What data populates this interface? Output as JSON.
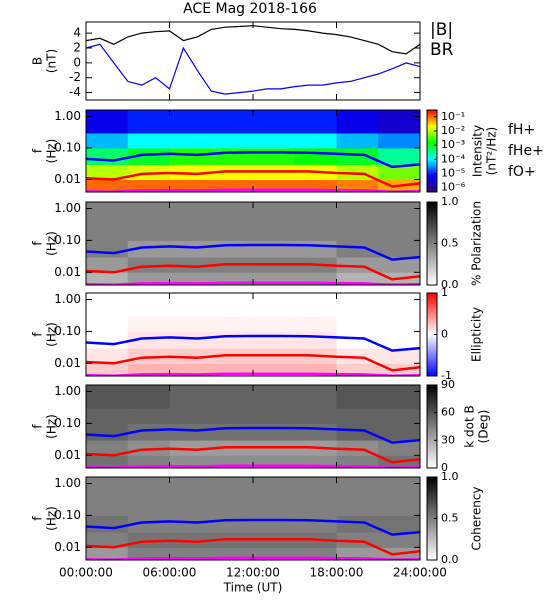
{
  "chart_data": [
    {
      "type": "line",
      "title": "ACE Mag 2018-166",
      "ylabel": [
        "B",
        "(nT)"
      ],
      "x": [
        0,
        1,
        2,
        3,
        4,
        5,
        6,
        7,
        8,
        9,
        10,
        11,
        12,
        13,
        14,
        15,
        16,
        17,
        18,
        19,
        20,
        21,
        22,
        23,
        24
      ],
      "xlim": [
        0,
        24
      ],
      "ylim": [
        -5,
        5.5
      ],
      "yticks": [
        -4,
        -2,
        0,
        2,
        4
      ],
      "series": [
        {
          "name": "|B|",
          "color": "#000000",
          "values": [
            3.0,
            3.3,
            2.5,
            3.5,
            4.0,
            4.2,
            4.3,
            3.0,
            3.5,
            4.5,
            4.8,
            4.9,
            5.0,
            4.8,
            4.6,
            4.5,
            4.3,
            4.0,
            3.8,
            3.5,
            3.0,
            2.5,
            1.5,
            1.2,
            2.5
          ]
        },
        {
          "name": "BR",
          "color": "#0000ff",
          "values": [
            2.0,
            2.5,
            0.0,
            -2.5,
            -3.0,
            -2.0,
            -3.5,
            2.0,
            -1.0,
            -3.8,
            -4.2,
            -4.0,
            -3.8,
            -3.5,
            -3.5,
            -3.2,
            -3.0,
            -3.0,
            -2.7,
            -2.5,
            -2.0,
            -1.5,
            -0.8,
            0.0,
            -0.5
          ]
        }
      ]
    },
    {
      "type": "heatmap",
      "ylabel": [
        "f",
        "(Hz)"
      ],
      "ylog": true,
      "xlim": [
        0,
        24
      ],
      "ylim": [
        0.004,
        1.6
      ],
      "yticks": [
        {
          "value": 1,
          "label": "1.00"
        },
        {
          "value": 0.1,
          "label": "0.10"
        },
        0.01
      ],
      "x_edges": [
        0,
        3,
        6,
        9,
        12,
        15,
        18,
        21,
        24
      ],
      "y_edges": [
        0.004,
        0.01,
        0.03,
        0.1,
        0.3,
        1.6
      ],
      "z": [
        [
          0.1,
          0.1,
          0.1,
          0.1,
          0.1,
          0.1,
          0.08,
          0.05
        ],
        [
          0.01,
          0.015,
          0.02,
          0.02,
          0.02,
          0.02,
          0.01,
          0.005
        ],
        [
          0.0005,
          0.001,
          0.002,
          0.002,
          0.002,
          0.0015,
          0.001,
          0.0003
        ],
        [
          5e-05,
          0.0001,
          0.0001,
          0.0001,
          0.0001,
          0.0001,
          5e-05,
          3e-05
        ],
        [
          5e-06,
          1e-05,
          1e-05,
          1e-05,
          1e-05,
          1e-05,
          5e-06,
          3e-06
        ]
      ],
      "colormap": [
        "#3a006a",
        "#0000ff",
        "#00ffff",
        "#00ff00",
        "#ffff00",
        "#ff0000"
      ],
      "colorscale": "log",
      "clim": [
        5e-07,
        0.3
      ],
      "cticks": [
        {
          "value": 0.1,
          "label": "10⁻¹"
        },
        {
          "value": 0.01,
          "label": "10⁻²"
        },
        {
          "value": 0.001,
          "label": "10⁻³"
        },
        {
          "value": 0.0001,
          "label": "10⁻⁴"
        },
        {
          "value": 1e-05,
          "label": "10⁻⁵"
        },
        {
          "value": 1e-06,
          "label": "10⁻⁶"
        }
      ],
      "clabel": [
        "Intensity",
        "(nT²/Hz)"
      ],
      "x": [
        0,
        2,
        4,
        6,
        8,
        10,
        12,
        14,
        16,
        18,
        20,
        22,
        24
      ],
      "series": [
        {
          "name": "fH+",
          "color": "#0000ff",
          "values": [
            0.045,
            0.04,
            0.06,
            0.065,
            0.06,
            0.07,
            0.072,
            0.072,
            0.07,
            0.065,
            0.06,
            0.025,
            0.03
          ]
        },
        {
          "name": "fHe+",
          "color": "#ff0000",
          "values": [
            0.011,
            0.01,
            0.015,
            0.016,
            0.015,
            0.018,
            0.018,
            0.018,
            0.018,
            0.016,
            0.015,
            0.006,
            0.0075
          ]
        },
        {
          "name": "fO+",
          "color": "#ff00ff",
          "values": [
            0.0042,
            0.0041,
            0.0045,
            0.0046,
            0.0045,
            0.0047,
            0.0047,
            0.0047,
            0.0047,
            0.0046,
            0.0045,
            0.0041,
            0.0042
          ]
        }
      ]
    },
    {
      "type": "heatmap",
      "ylabel": [
        "f",
        "(Hz)"
      ],
      "ylog": true,
      "xlim": [
        0,
        24
      ],
      "ylim": [
        0.004,
        1.6
      ],
      "yticks": [
        {
          "value": 1,
          "label": "1.00"
        },
        {
          "value": 0.1,
          "label": "0.10"
        },
        0.01
      ],
      "x_edges": [
        0,
        3,
        6,
        9,
        12,
        15,
        18,
        21,
        24
      ],
      "y_edges": [
        0.004,
        0.01,
        0.03,
        0.1,
        0.3,
        1.6
      ],
      "z": [
        [
          0.3,
          0.4,
          0.4,
          0.4,
          0.4,
          0.4,
          0.3,
          0.3
        ],
        [
          0.4,
          0.5,
          0.5,
          0.5,
          0.5,
          0.5,
          0.4,
          0.4
        ],
        [
          0.5,
          0.4,
          0.4,
          0.4,
          0.4,
          0.4,
          0.5,
          0.5
        ],
        [
          0.5,
          0.5,
          0.5,
          0.5,
          0.5,
          0.5,
          0.5,
          0.5
        ],
        [
          0.5,
          0.5,
          0.5,
          0.5,
          0.5,
          0.5,
          0.5,
          0.5
        ]
      ],
      "colormap": [
        "#ffffff",
        "#000000"
      ],
      "clim": [
        0,
        1
      ],
      "cticks": [
        {
          "value": 0,
          "label": "0.0"
        },
        0.5,
        {
          "value": 1,
          "label": "1.0"
        }
      ],
      "clabel": [
        "% Polarization"
      ],
      "x": [
        0,
        2,
        4,
        6,
        8,
        10,
        12,
        14,
        16,
        18,
        20,
        22,
        24
      ],
      "series": [
        {
          "color": "#0000ff",
          "values": [
            0.045,
            0.04,
            0.06,
            0.065,
            0.06,
            0.07,
            0.072,
            0.072,
            0.07,
            0.065,
            0.06,
            0.025,
            0.03
          ]
        },
        {
          "color": "#ff0000",
          "values": [
            0.011,
            0.01,
            0.015,
            0.016,
            0.015,
            0.018,
            0.018,
            0.018,
            0.018,
            0.016,
            0.015,
            0.006,
            0.0075
          ]
        },
        {
          "color": "#ff00ff",
          "values": [
            0.0042,
            0.0041,
            0.0045,
            0.0046,
            0.0045,
            0.0047,
            0.0047,
            0.0047,
            0.0047,
            0.0046,
            0.0045,
            0.0041,
            0.0042
          ]
        }
      ]
    },
    {
      "type": "heatmap",
      "ylabel": [
        "f",
        "(Hz)"
      ],
      "ylog": true,
      "xlim": [
        0,
        24
      ],
      "ylim": [
        0.004,
        1.6
      ],
      "yticks": [
        {
          "value": 1,
          "label": "1.00"
        },
        {
          "value": 0.1,
          "label": "0.10"
        },
        0.01
      ],
      "x_edges": [
        0,
        3,
        6,
        9,
        12,
        15,
        18,
        21,
        24
      ],
      "y_edges": [
        0.004,
        0.01,
        0.03,
        0.1,
        0.3,
        1.6
      ],
      "z": [
        [
          0.2,
          0.3,
          0.3,
          0.3,
          0.3,
          0.3,
          0.2,
          0.2
        ],
        [
          0.1,
          0.2,
          0.2,
          0.2,
          0.2,
          0.2,
          0.1,
          0.1
        ],
        [
          0,
          0.1,
          0.1,
          0.1,
          0.1,
          0.1,
          0,
          0
        ],
        [
          0,
          0.05,
          0.05,
          0.05,
          0.05,
          0.05,
          0,
          0
        ],
        [
          0,
          0,
          0,
          0,
          0,
          0,
          0,
          0
        ]
      ],
      "colormap": [
        "#0000ff",
        "#ffffff",
        "#ff0000"
      ],
      "clim": [
        -1,
        1
      ],
      "cticks": [
        -1,
        0,
        1
      ],
      "clabel": [
        "Ellipticity"
      ],
      "x": [
        0,
        2,
        4,
        6,
        8,
        10,
        12,
        14,
        16,
        18,
        20,
        22,
        24
      ],
      "series": [
        {
          "color": "#0000ff",
          "values": [
            0.045,
            0.04,
            0.06,
            0.065,
            0.06,
            0.07,
            0.072,
            0.072,
            0.07,
            0.065,
            0.06,
            0.025,
            0.03
          ]
        },
        {
          "color": "#ff0000",
          "values": [
            0.011,
            0.01,
            0.015,
            0.016,
            0.015,
            0.018,
            0.018,
            0.018,
            0.018,
            0.016,
            0.015,
            0.006,
            0.0075
          ]
        },
        {
          "color": "#ff00ff",
          "values": [
            0.0042,
            0.0041,
            0.0045,
            0.0046,
            0.0045,
            0.0047,
            0.0047,
            0.0047,
            0.0047,
            0.0046,
            0.0045,
            0.0041,
            0.0042
          ]
        }
      ]
    },
    {
      "type": "heatmap",
      "ylabel": [
        "f",
        "(Hz)"
      ],
      "ylog": true,
      "xlim": [
        0,
        24
      ],
      "ylim": [
        0.004,
        1.6
      ],
      "yticks": [
        {
          "value": 1,
          "label": "1.00"
        },
        {
          "value": 0.1,
          "label": "0.10"
        },
        0.01
      ],
      "x_edges": [
        0,
        3,
        6,
        9,
        12,
        15,
        18,
        21,
        24
      ],
      "y_edges": [
        0.004,
        0.01,
        0.03,
        0.1,
        0.3,
        1.6
      ],
      "z": [
        [
          50,
          45,
          40,
          40,
          40,
          40,
          45,
          50
        ],
        [
          45,
          40,
          35,
          35,
          35,
          35,
          40,
          45
        ],
        [
          55,
          50,
          50,
          50,
          50,
          50,
          55,
          55
        ],
        [
          55,
          55,
          55,
          55,
          55,
          55,
          55,
          55
        ],
        [
          60,
          60,
          55,
          55,
          55,
          55,
          60,
          60
        ]
      ],
      "colormap": [
        "#ffffff",
        "#000000"
      ],
      "clim": [
        0,
        90
      ],
      "cticks": [
        0,
        30,
        60,
        90
      ],
      "clabel": [
        "k dot B",
        "(Deg)"
      ],
      "x": [
        0,
        2,
        4,
        6,
        8,
        10,
        12,
        14,
        16,
        18,
        20,
        22,
        24
      ],
      "series": [
        {
          "color": "#0000ff",
          "values": [
            0.045,
            0.04,
            0.06,
            0.065,
            0.06,
            0.07,
            0.072,
            0.072,
            0.07,
            0.065,
            0.06,
            0.025,
            0.03
          ]
        },
        {
          "color": "#ff0000",
          "values": [
            0.011,
            0.01,
            0.015,
            0.016,
            0.015,
            0.018,
            0.018,
            0.018,
            0.018,
            0.016,
            0.015,
            0.006,
            0.0075
          ]
        },
        {
          "color": "#ff00ff",
          "values": [
            0.0042,
            0.0041,
            0.0045,
            0.0046,
            0.0045,
            0.0047,
            0.0047,
            0.0047,
            0.0047,
            0.0046,
            0.0045,
            0.0041,
            0.0042
          ]
        }
      ]
    },
    {
      "type": "heatmap",
      "ylabel": [
        "f",
        "(Hz)"
      ],
      "ylog": true,
      "xlim": [
        0,
        24
      ],
      "ylim": [
        0.004,
        1.6
      ],
      "yticks": [
        {
          "value": 1,
          "label": "1.00"
        },
        {
          "value": 0.1,
          "label": "0.10"
        },
        0.01
      ],
      "x_edges": [
        0,
        3,
        6,
        9,
        12,
        15,
        18,
        21,
        24
      ],
      "y_edges": [
        0.004,
        0.01,
        0.03,
        0.1,
        0.3,
        1.6
      ],
      "z": [
        [
          0.4,
          0.5,
          0.5,
          0.5,
          0.5,
          0.5,
          0.4,
          0.4
        ],
        [
          0.5,
          0.55,
          0.55,
          0.55,
          0.55,
          0.55,
          0.5,
          0.5
        ],
        [
          0.55,
          0.5,
          0.5,
          0.5,
          0.5,
          0.5,
          0.55,
          0.55
        ],
        [
          0.5,
          0.5,
          0.5,
          0.5,
          0.5,
          0.5,
          0.5,
          0.5
        ],
        [
          0.5,
          0.5,
          0.5,
          0.5,
          0.5,
          0.5,
          0.5,
          0.5
        ]
      ],
      "colormap": [
        "#ffffff",
        "#000000"
      ],
      "clim": [
        0,
        1
      ],
      "cticks": [
        {
          "value": 0,
          "label": "0.0"
        },
        0.5,
        {
          "value": 1,
          "label": "1.0"
        }
      ],
      "clabel": [
        "Coherency"
      ],
      "x": [
        0,
        2,
        4,
        6,
        8,
        10,
        12,
        14,
        16,
        18,
        20,
        22,
        24
      ],
      "series": [
        {
          "color": "#0000ff",
          "values": [
            0.045,
            0.04,
            0.06,
            0.065,
            0.06,
            0.07,
            0.072,
            0.072,
            0.07,
            0.065,
            0.06,
            0.025,
            0.03
          ]
        },
        {
          "color": "#ff0000",
          "values": [
            0.011,
            0.01,
            0.015,
            0.016,
            0.015,
            0.018,
            0.018,
            0.018,
            0.018,
            0.016,
            0.015,
            0.006,
            0.0075
          ]
        },
        {
          "color": "#ff00ff",
          "values": [
            0.0042,
            0.0041,
            0.0045,
            0.0046,
            0.0045,
            0.0047,
            0.0047,
            0.0047,
            0.0047,
            0.0046,
            0.0045,
            0.0041,
            0.0042
          ]
        }
      ],
      "xticks": [
        {
          "value": 0,
          "label": "00:00:00"
        },
        {
          "value": 6,
          "label": "06:00:00"
        },
        {
          "value": 12,
          "label": "12:00:00"
        },
        {
          "value": 18,
          "label": "18:00:00"
        },
        {
          "value": 24,
          "label": "24:00:00"
        }
      ],
      "xlabel": "Time (UT)"
    }
  ]
}
